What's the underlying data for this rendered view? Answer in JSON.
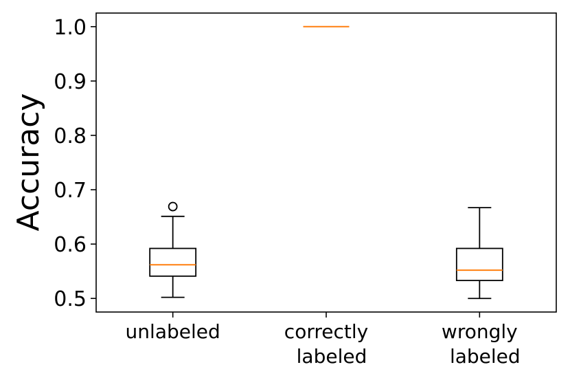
{
  "chart_data": {
    "type": "box",
    "ylabel": "Accuracy",
    "ylim": [
      0.475,
      1.025
    ],
    "yticks": [
      "0.5",
      "0.6",
      "0.7",
      "0.8",
      "0.9",
      "1.0"
    ],
    "categories": [
      {
        "lines": [
          "unlabeled"
        ]
      },
      {
        "lines": [
          "correctly",
          "labeled"
        ]
      },
      {
        "lines": [
          "wrongly",
          "labeled"
        ]
      }
    ],
    "boxes": [
      {
        "whisker_low": 0.502,
        "q1": 0.541,
        "median": 0.562,
        "q3": 0.592,
        "whisker_high": 0.651,
        "outliers": [
          0.669
        ]
      },
      {
        "whisker_low": 1.0,
        "q1": 1.0,
        "median": 1.0,
        "q3": 1.0,
        "whisker_high": 1.0,
        "outliers": []
      },
      {
        "whisker_low": 0.5,
        "q1": 0.533,
        "median": 0.552,
        "q3": 0.592,
        "whisker_high": 0.667,
        "outliers": []
      }
    ],
    "colors": {
      "box": "#000000",
      "median": "#ff7f0e"
    },
    "grid": false,
    "legend": "none"
  }
}
